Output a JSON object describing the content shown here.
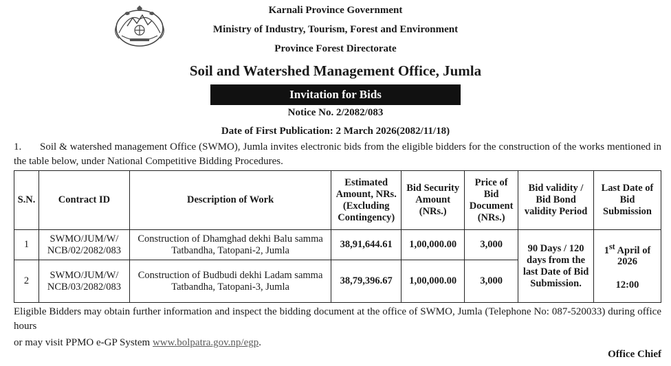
{
  "header": {
    "line1": "Karnali Province Government",
    "line2": "Ministry of Industry, Tourism, Forest and Environment",
    "line3": "Province Forest Directorate",
    "office": "Soil and Watershed Management Office, Jumla",
    "banner": "Invitation for Bids",
    "notice": "Notice No. 2/2082/083",
    "publication": "Date of First Publication:  2 March 2026(2082/11/18)"
  },
  "intro": {
    "number": "1.",
    "text": "Soil & watershed management Office (SWMO), Jumla invites electronic bids from the eligible bidders for the construction of the works mentioned in the table below, under National Competitive Bidding Procedures."
  },
  "table": {
    "headers": {
      "sn": "S.N.",
      "contract": "Contract ID",
      "desc": "Description of Work",
      "estimate": "Estimated Amount, NRs. (Excluding Contingency)",
      "security": "Bid Security Amount (NRs.)",
      "price": "Price of Bid Document (NRs.)",
      "validity": "Bid validity / Bid Bond validity Period",
      "lastdate": "Last Date of Bid Submission"
    },
    "rows": [
      {
        "sn": "1",
        "contract": "SWMO/JUM/W/ NCB/02/2082/083",
        "desc": "Construction of  Dhamghad dekhi Balu samma Tatbandha, Tatopani-2, Jumla",
        "estimate": "38,91,644.61",
        "security": "1,00,000.00",
        "price": "3,000"
      },
      {
        "sn": "2",
        "contract": "SWMO/JUM/W/ NCB/03/2082/083",
        "desc": "Construction of Budbudi dekhi Ladam samma Tatbandha, Tatopani-3, Jumla",
        "estimate": "38,79,396.67",
        "security": "1,00,000.00",
        "price": "3,000"
      }
    ],
    "validity": "90 Days / 120 days from the last Date of Bid Submission.",
    "lastdate_day": "1",
    "lastdate_sup": "st",
    "lastdate_rest": " April of 2026",
    "lastdate_time": "12:00"
  },
  "footer": {
    "eligible": "Eligible Bidders may obtain further information and inspect the bidding document at the office of SWMO, Jumla (Telephone No:  087-520033) during office hours",
    "visit_prefix": "or may visit PPMO e-GP System ",
    "link": "www.bolpatra.gov.np/egp",
    "visit_suffix": ".",
    "signatory": "Office Chief"
  },
  "icons": {
    "emblem": "nepal-emblem-icon"
  }
}
